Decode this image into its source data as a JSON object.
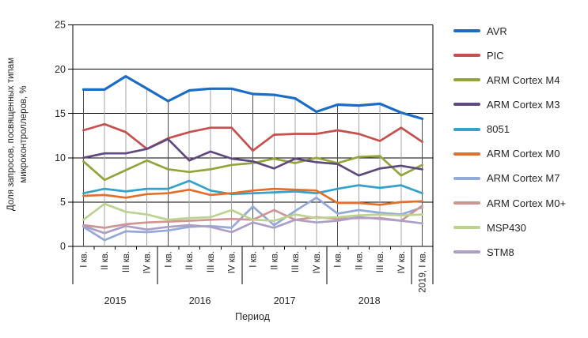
{
  "chart_data": {
    "type": "line",
    "title": "",
    "ylabel_lines": [
      "Доля запросов, посвященных типам",
      "микроконтроллеров, %"
    ],
    "xlabel": "Период",
    "ylim": [
      0,
      25
    ],
    "yticks": [
      0,
      5,
      10,
      15,
      20,
      25
    ],
    "grid_on": true,
    "legend_position": "right",
    "categories": [
      "I кв.",
      "II кв.",
      "III кв.",
      "IV кв.",
      "I кв.",
      "II кв.",
      "III кв.",
      "IV кв.",
      "I кв.",
      "II кв.",
      "III кв.",
      "IV кв.",
      "I кв.",
      "II кв.",
      "III кв.",
      "IV кв.",
      "2019, I кв."
    ],
    "year_groups": [
      {
        "label": "2015",
        "start": 0,
        "span": 4
      },
      {
        "label": "2016",
        "start": 4,
        "span": 4
      },
      {
        "label": "2017",
        "start": 8,
        "span": 4
      },
      {
        "label": "2018",
        "start": 12,
        "span": 4
      }
    ],
    "year_separator_indices": [
      0,
      4,
      8,
      12,
      16,
      17
    ],
    "drop_lines": {
      "source_series": "AVR",
      "color": "#A6A6A6",
      "year_start_color": "#4F4F4F"
    },
    "axis_color": "#000000",
    "text_color": "#262626",
    "series": [
      {
        "name": "AVR",
        "color": "#1B6CC6",
        "values": [
          17.7,
          17.7,
          19.2,
          17.8,
          16.4,
          17.6,
          17.8,
          17.8,
          17.2,
          17.1,
          16.7,
          15.2,
          16.0,
          15.9,
          16.1,
          15.1,
          14.4
        ]
      },
      {
        "name": "PIC",
        "color": "#C7504E",
        "values": [
          13.1,
          13.8,
          12.9,
          11.0,
          12.2,
          12.9,
          13.4,
          13.4,
          10.8,
          12.6,
          12.7,
          12.7,
          13.1,
          12.7,
          11.9,
          13.4,
          11.8
        ]
      },
      {
        "name": "ARM Cortex M4",
        "color": "#94A43C",
        "values": [
          9.6,
          7.5,
          8.6,
          9.7,
          8.7,
          8.4,
          8.7,
          9.2,
          9.4,
          9.9,
          9.4,
          10.0,
          9.4,
          10.1,
          10.2,
          8.0,
          9.2
        ]
      },
      {
        "name": "ARM Cortex M3",
        "color": "#5E4A7D",
        "values": [
          10.0,
          10.5,
          10.5,
          11.0,
          12.1,
          9.7,
          10.7,
          9.9,
          9.6,
          8.8,
          9.9,
          9.5,
          9.3,
          8.0,
          8.8,
          9.1,
          8.7
        ]
      },
      {
        "name": "8051",
        "color": "#35A1C9",
        "values": [
          6.0,
          6.5,
          6.2,
          6.5,
          6.5,
          7.4,
          6.3,
          5.9,
          6.0,
          6.1,
          6.2,
          6.0,
          6.5,
          6.9,
          6.6,
          6.9,
          6.0
        ]
      },
      {
        "name": "ARM Cortex M0",
        "color": "#E2702D",
        "values": [
          5.7,
          5.8,
          5.5,
          5.9,
          6.0,
          6.4,
          5.8,
          6.0,
          6.3,
          6.5,
          6.4,
          6.3,
          4.9,
          4.9,
          4.7,
          5.0,
          5.1
        ]
      },
      {
        "name": "ARM Cortex M7",
        "color": "#93A9D8",
        "values": [
          2.2,
          0.7,
          1.7,
          1.6,
          1.8,
          2.2,
          2.3,
          2.1,
          4.5,
          2.4,
          4.0,
          5.5,
          3.7,
          4.1,
          3.8,
          3.6,
          4.4
        ]
      },
      {
        "name": "ARM Cortex M0+",
        "color": "#D09593",
        "values": [
          2.4,
          2.1,
          2.5,
          2.7,
          2.8,
          2.9,
          3.0,
          3.1,
          3.0,
          4.1,
          3.0,
          3.3,
          3.1,
          3.2,
          3.2,
          2.9,
          4.6
        ]
      },
      {
        "name": "MSP430",
        "color": "#BCD28F",
        "values": [
          3.0,
          4.8,
          3.9,
          3.6,
          3.0,
          3.2,
          3.3,
          4.1,
          3.0,
          2.9,
          3.6,
          3.2,
          3.3,
          3.5,
          3.6,
          3.5,
          3.6
        ]
      },
      {
        "name": "STM8",
        "color": "#AC9EC6",
        "values": [
          2.3,
          1.5,
          2.3,
          1.9,
          2.2,
          2.4,
          2.2,
          1.6,
          2.7,
          2.1,
          3.0,
          2.7,
          2.9,
          3.3,
          3.1,
          2.9,
          2.6
        ]
      }
    ]
  }
}
